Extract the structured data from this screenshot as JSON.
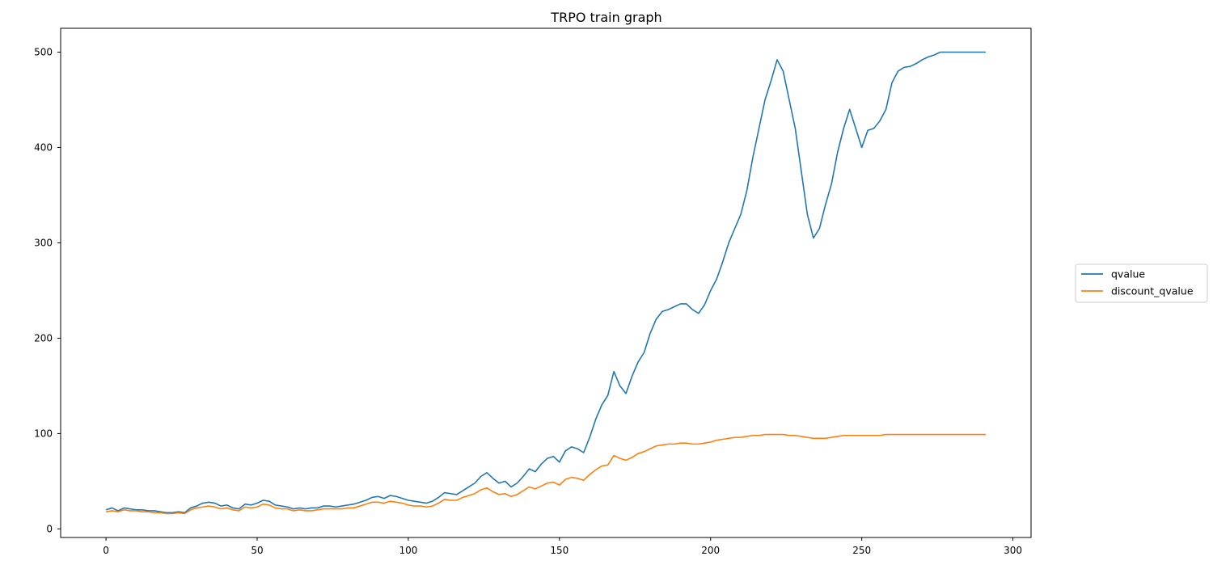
{
  "chart_data": {
    "type": "line",
    "title": "TRPO train graph",
    "xlabel": "",
    "ylabel": "",
    "xlim": [
      -15,
      306
    ],
    "ylim": [
      -9,
      525
    ],
    "x_ticks": [
      0,
      50,
      100,
      150,
      200,
      250,
      300
    ],
    "y_ticks": [
      0,
      100,
      200,
      300,
      400,
      500
    ],
    "grid": false,
    "legend_position": "right-outside",
    "series": [
      {
        "name": "qvalue",
        "color": "#1f77b4",
        "points": [
          [
            0,
            20
          ],
          [
            2,
            22
          ],
          [
            4,
            19
          ],
          [
            6,
            22
          ],
          [
            8,
            21
          ],
          [
            10,
            20
          ],
          [
            12,
            20
          ],
          [
            14,
            19
          ],
          [
            16,
            19
          ],
          [
            18,
            18
          ],
          [
            20,
            17
          ],
          [
            22,
            17
          ],
          [
            24,
            18
          ],
          [
            26,
            17
          ],
          [
            28,
            22
          ],
          [
            30,
            24
          ],
          [
            32,
            27
          ],
          [
            34,
            28
          ],
          [
            36,
            27
          ],
          [
            38,
            24
          ],
          [
            40,
            25
          ],
          [
            42,
            22
          ],
          [
            44,
            21
          ],
          [
            46,
            26
          ],
          [
            48,
            25
          ],
          [
            50,
            27
          ],
          [
            52,
            30
          ],
          [
            54,
            29
          ],
          [
            56,
            25
          ],
          [
            58,
            24
          ],
          [
            60,
            23
          ],
          [
            62,
            21
          ],
          [
            64,
            22
          ],
          [
            66,
            21
          ],
          [
            68,
            22
          ],
          [
            70,
            22
          ],
          [
            72,
            24
          ],
          [
            74,
            24
          ],
          [
            76,
            23
          ],
          [
            78,
            24
          ],
          [
            80,
            25
          ],
          [
            82,
            26
          ],
          [
            84,
            28
          ],
          [
            86,
            30
          ],
          [
            88,
            33
          ],
          [
            90,
            34
          ],
          [
            92,
            32
          ],
          [
            94,
            35
          ],
          [
            96,
            34
          ],
          [
            98,
            32
          ],
          [
            100,
            30
          ],
          [
            102,
            29
          ],
          [
            104,
            28
          ],
          [
            106,
            27
          ],
          [
            108,
            29
          ],
          [
            110,
            33
          ],
          [
            112,
            38
          ],
          [
            114,
            37
          ],
          [
            116,
            36
          ],
          [
            118,
            40
          ],
          [
            120,
            44
          ],
          [
            122,
            48
          ],
          [
            124,
            55
          ],
          [
            126,
            59
          ],
          [
            128,
            53
          ],
          [
            130,
            48
          ],
          [
            132,
            50
          ],
          [
            134,
            44
          ],
          [
            136,
            48
          ],
          [
            138,
            55
          ],
          [
            140,
            63
          ],
          [
            142,
            60
          ],
          [
            144,
            68
          ],
          [
            146,
            74
          ],
          [
            148,
            76
          ],
          [
            150,
            70
          ],
          [
            152,
            82
          ],
          [
            154,
            86
          ],
          [
            156,
            84
          ],
          [
            158,
            80
          ],
          [
            160,
            96
          ],
          [
            162,
            115
          ],
          [
            164,
            130
          ],
          [
            166,
            140
          ],
          [
            168,
            165
          ],
          [
            170,
            150
          ],
          [
            172,
            142
          ],
          [
            174,
            160
          ],
          [
            176,
            175
          ],
          [
            178,
            185
          ],
          [
            180,
            205
          ],
          [
            182,
            220
          ],
          [
            184,
            228
          ],
          [
            186,
            230
          ],
          [
            188,
            233
          ],
          [
            190,
            236
          ],
          [
            192,
            236
          ],
          [
            194,
            230
          ],
          [
            196,
            226
          ],
          [
            198,
            235
          ],
          [
            200,
            250
          ],
          [
            202,
            262
          ],
          [
            204,
            280
          ],
          [
            206,
            300
          ],
          [
            208,
            315
          ],
          [
            210,
            330
          ],
          [
            212,
            355
          ],
          [
            214,
            390
          ],
          [
            216,
            420
          ],
          [
            218,
            450
          ],
          [
            220,
            470
          ],
          [
            222,
            492
          ],
          [
            224,
            480
          ],
          [
            226,
            450
          ],
          [
            228,
            420
          ],
          [
            230,
            375
          ],
          [
            232,
            330
          ],
          [
            234,
            305
          ],
          [
            236,
            315
          ],
          [
            238,
            340
          ],
          [
            240,
            362
          ],
          [
            242,
            395
          ],
          [
            244,
            420
          ],
          [
            246,
            440
          ],
          [
            248,
            420
          ],
          [
            250,
            400
          ],
          [
            252,
            418
          ],
          [
            254,
            420
          ],
          [
            256,
            428
          ],
          [
            258,
            440
          ],
          [
            260,
            468
          ],
          [
            262,
            480
          ],
          [
            264,
            484
          ],
          [
            266,
            485
          ],
          [
            268,
            488
          ],
          [
            270,
            492
          ],
          [
            272,
            495
          ],
          [
            274,
            497
          ],
          [
            276,
            500
          ],
          [
            280,
            500
          ],
          [
            285,
            500
          ],
          [
            291,
            500
          ]
        ]
      },
      {
        "name": "discount_qvalue",
        "color": "#ff7f0e",
        "points": [
          [
            0,
            18
          ],
          [
            2,
            19
          ],
          [
            4,
            18
          ],
          [
            6,
            20
          ],
          [
            8,
            19
          ],
          [
            10,
            19
          ],
          [
            12,
            18
          ],
          [
            14,
            18
          ],
          [
            16,
            17
          ],
          [
            18,
            17
          ],
          [
            20,
            16
          ],
          [
            22,
            16
          ],
          [
            24,
            17
          ],
          [
            26,
            16
          ],
          [
            28,
            20
          ],
          [
            30,
            22
          ],
          [
            32,
            23
          ],
          [
            34,
            24
          ],
          [
            36,
            23
          ],
          [
            38,
            21
          ],
          [
            40,
            22
          ],
          [
            42,
            20
          ],
          [
            44,
            19
          ],
          [
            46,
            23
          ],
          [
            48,
            22
          ],
          [
            50,
            23
          ],
          [
            52,
            26
          ],
          [
            54,
            25
          ],
          [
            56,
            22
          ],
          [
            58,
            21
          ],
          [
            60,
            21
          ],
          [
            62,
            19
          ],
          [
            64,
            20
          ],
          [
            66,
            19
          ],
          [
            68,
            19
          ],
          [
            70,
            20
          ],
          [
            72,
            21
          ],
          [
            74,
            21
          ],
          [
            76,
            21
          ],
          [
            78,
            21
          ],
          [
            80,
            22
          ],
          [
            82,
            22
          ],
          [
            84,
            24
          ],
          [
            86,
            26
          ],
          [
            88,
            28
          ],
          [
            90,
            28
          ],
          [
            92,
            27
          ],
          [
            94,
            29
          ],
          [
            96,
            28
          ],
          [
            98,
            27
          ],
          [
            100,
            25
          ],
          [
            102,
            24
          ],
          [
            104,
            24
          ],
          [
            106,
            23
          ],
          [
            108,
            24
          ],
          [
            110,
            27
          ],
          [
            112,
            31
          ],
          [
            114,
            30
          ],
          [
            116,
            30
          ],
          [
            118,
            33
          ],
          [
            120,
            35
          ],
          [
            122,
            37
          ],
          [
            124,
            41
          ],
          [
            126,
            43
          ],
          [
            128,
            39
          ],
          [
            130,
            36
          ],
          [
            132,
            37
          ],
          [
            134,
            34
          ],
          [
            136,
            36
          ],
          [
            138,
            40
          ],
          [
            140,
            44
          ],
          [
            142,
            42
          ],
          [
            144,
            45
          ],
          [
            146,
            48
          ],
          [
            148,
            49
          ],
          [
            150,
            46
          ],
          [
            152,
            52
          ],
          [
            154,
            54
          ],
          [
            156,
            53
          ],
          [
            158,
            51
          ],
          [
            160,
            57
          ],
          [
            162,
            62
          ],
          [
            164,
            66
          ],
          [
            166,
            67
          ],
          [
            168,
            77
          ],
          [
            170,
            74
          ],
          [
            172,
            72
          ],
          [
            174,
            75
          ],
          [
            176,
            79
          ],
          [
            178,
            81
          ],
          [
            180,
            84
          ],
          [
            182,
            87
          ],
          [
            184,
            88
          ],
          [
            186,
            89
          ],
          [
            188,
            89
          ],
          [
            190,
            90
          ],
          [
            192,
            90
          ],
          [
            194,
            89
          ],
          [
            196,
            89
          ],
          [
            198,
            90
          ],
          [
            200,
            91
          ],
          [
            202,
            93
          ],
          [
            204,
            94
          ],
          [
            206,
            95
          ],
          [
            208,
            96
          ],
          [
            210,
            96
          ],
          [
            212,
            97
          ],
          [
            214,
            98
          ],
          [
            216,
            98
          ],
          [
            218,
            99
          ],
          [
            220,
            99
          ],
          [
            222,
            99
          ],
          [
            224,
            99
          ],
          [
            226,
            98
          ],
          [
            228,
            98
          ],
          [
            230,
            97
          ],
          [
            232,
            96
          ],
          [
            234,
            95
          ],
          [
            236,
            95
          ],
          [
            238,
            95
          ],
          [
            240,
            96
          ],
          [
            242,
            97
          ],
          [
            244,
            98
          ],
          [
            246,
            98
          ],
          [
            248,
            98
          ],
          [
            250,
            98
          ],
          [
            252,
            98
          ],
          [
            254,
            98
          ],
          [
            256,
            98
          ],
          [
            258,
            99
          ],
          [
            260,
            99
          ],
          [
            264,
            99
          ],
          [
            270,
            99
          ],
          [
            276,
            99
          ],
          [
            280,
            99
          ],
          [
            285,
            99
          ],
          [
            291,
            99
          ]
        ]
      }
    ]
  }
}
